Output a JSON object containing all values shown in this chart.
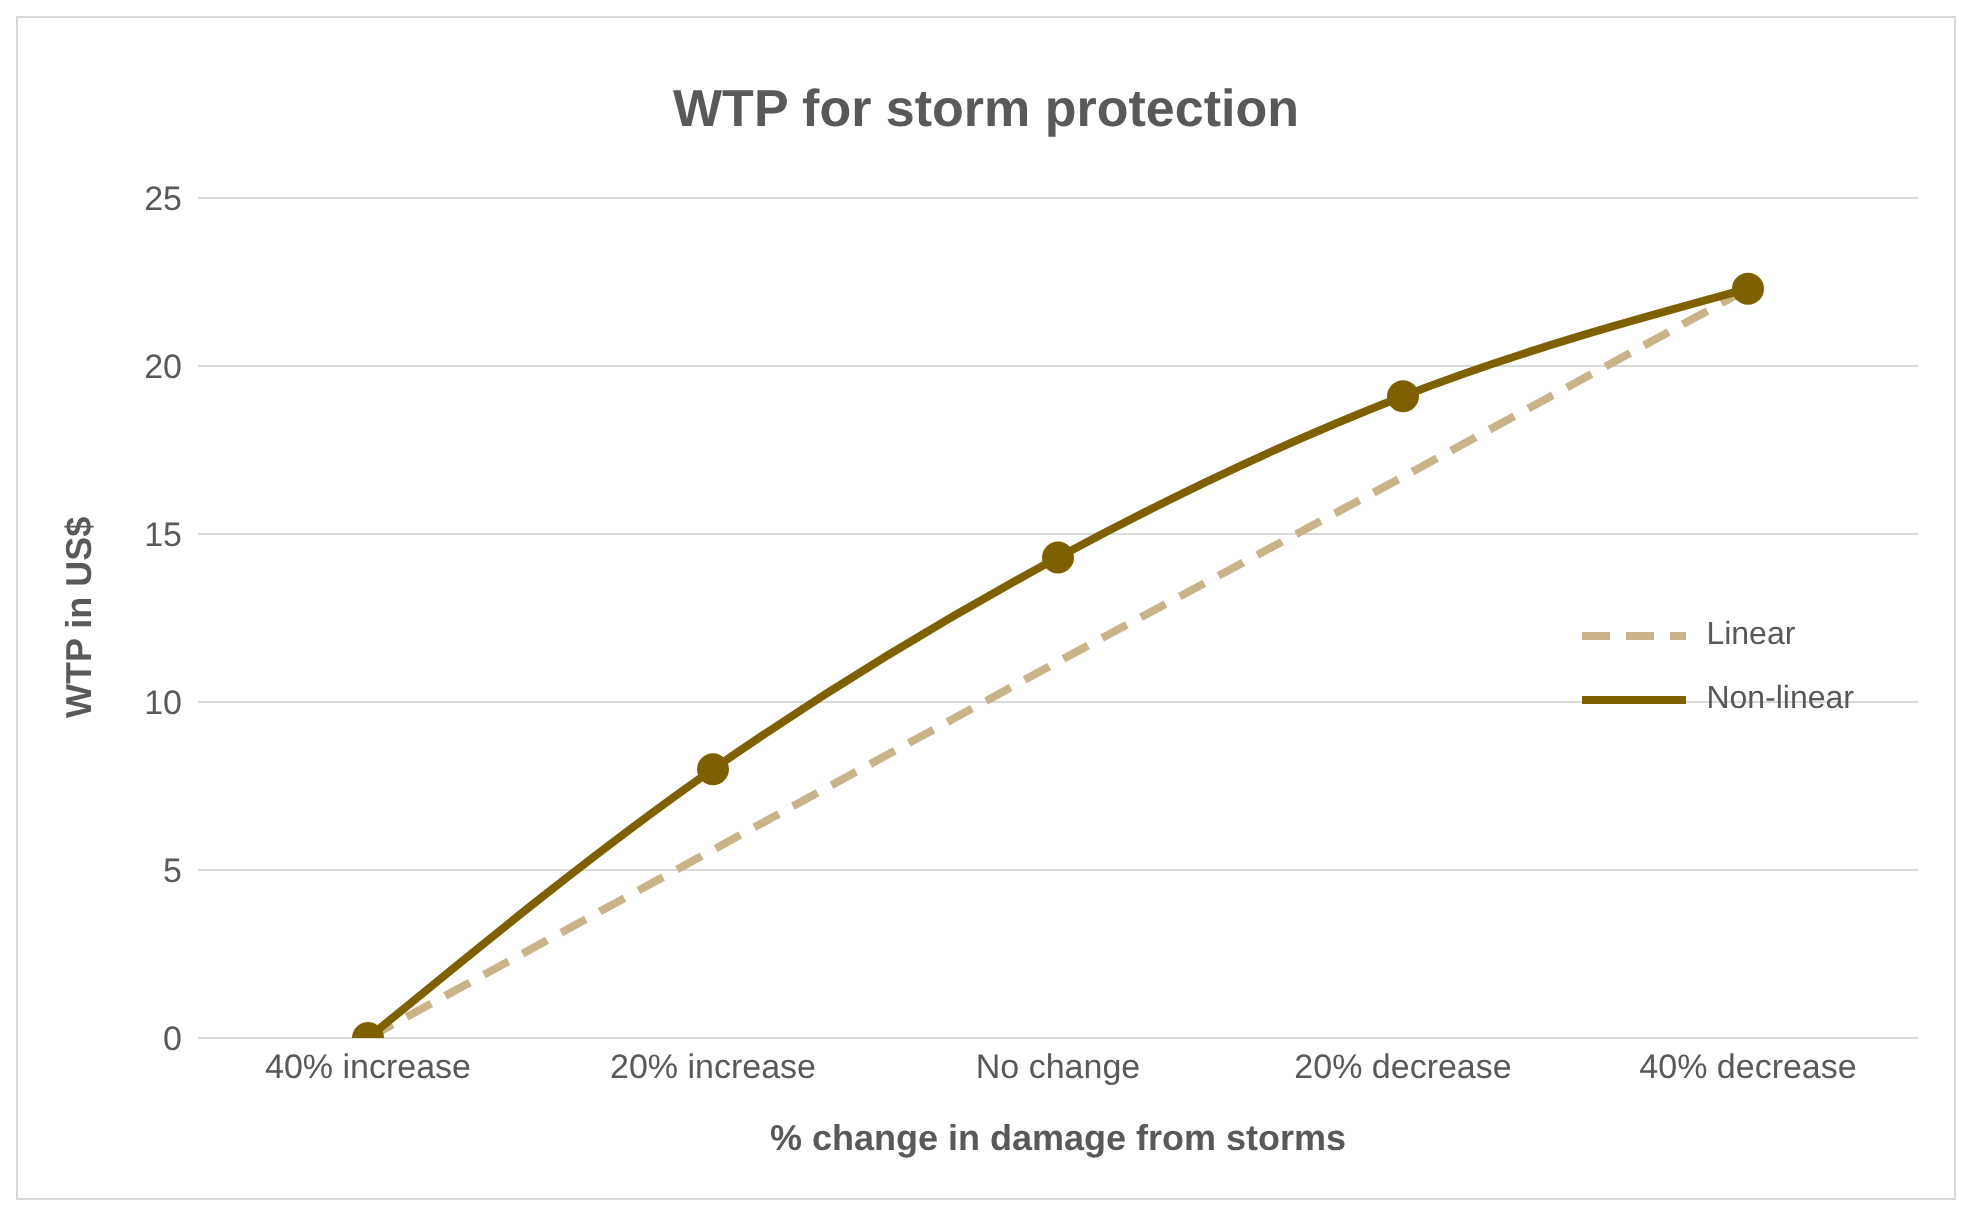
{
  "chart_data": {
    "type": "line",
    "title": "WTP for storm protection",
    "xlabel": "% change in damage from storms",
    "ylabel": "WTP in US$",
    "categories": [
      "40% increase",
      "20% increase",
      "No change",
      "20% decrease",
      "40% decrease"
    ],
    "series": [
      {
        "name": "Linear",
        "color": "#c9b48a",
        "values": [
          0,
          5.6,
          11.2,
          16.7,
          22.3
        ],
        "line_style": "dashed",
        "marker": "none"
      },
      {
        "name": "Non-linear",
        "color": "#7f6000",
        "values": [
          0,
          8,
          14.3,
          19.1,
          22.3
        ],
        "line_style": "solid",
        "marker": "circle"
      }
    ],
    "ylim": [
      0,
      25
    ],
    "yticks": [
      0,
      5,
      10,
      15,
      20,
      25
    ],
    "grid": "y",
    "legend": "right"
  }
}
